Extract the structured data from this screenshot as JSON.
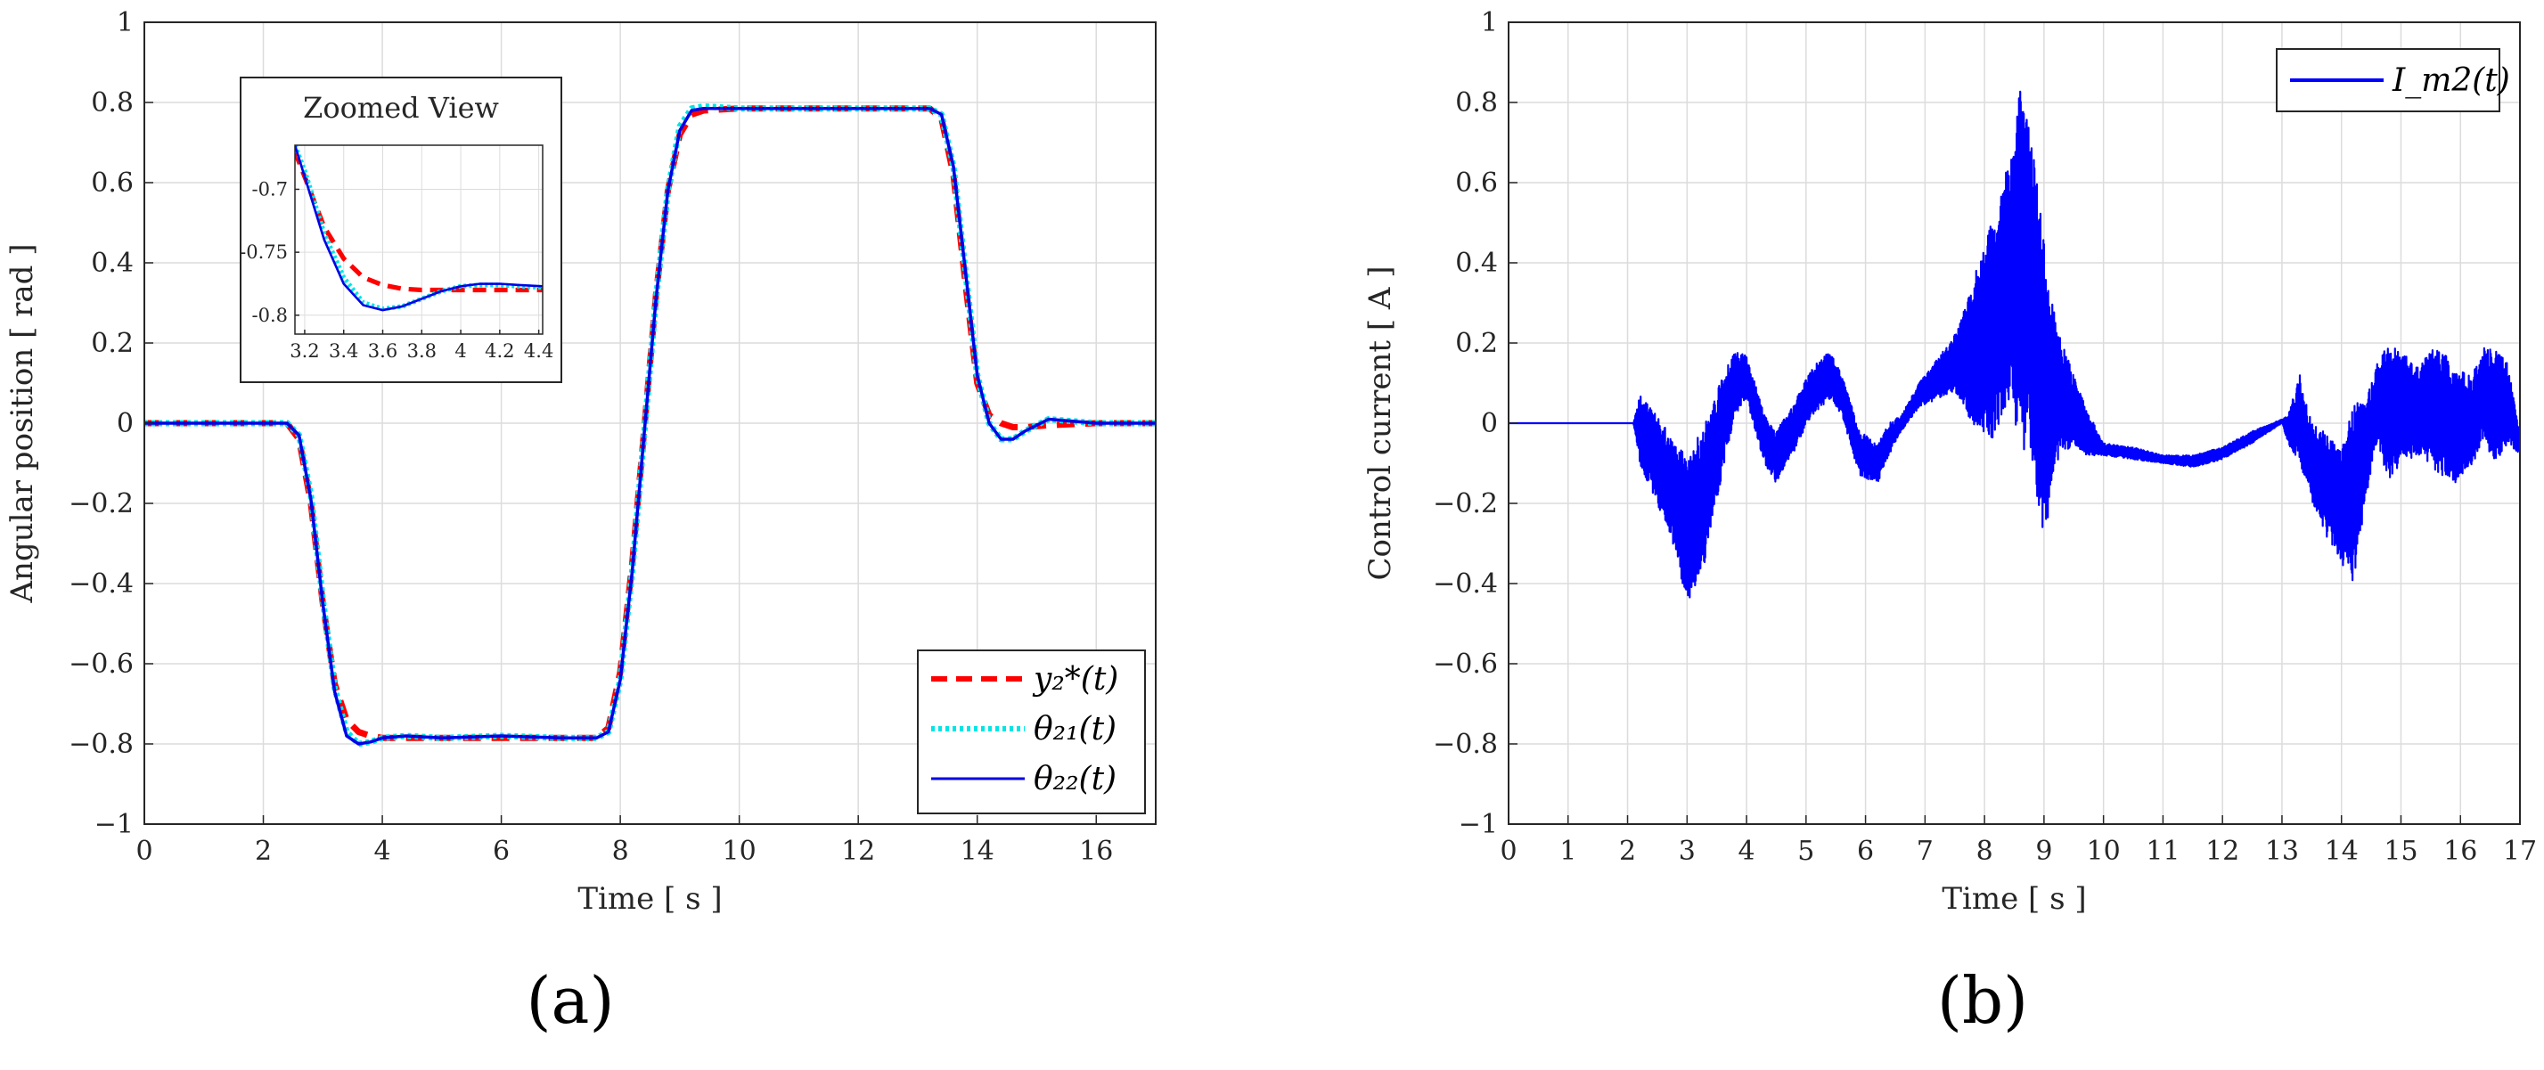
{
  "chart_data": [
    {
      "type": "line",
      "panel_label": "(a)",
      "xlabel": "Time [ s ]",
      "ylabel": "Angular position [ rad ]",
      "xlim": [
        0,
        17
      ],
      "ylim": [
        -1,
        1
      ],
      "xticks": [
        0,
        2,
        4,
        6,
        8,
        10,
        12,
        14,
        16
      ],
      "yticks": [
        -1,
        -0.8,
        -0.6,
        -0.4,
        -0.2,
        0,
        0.2,
        0.4,
        0.6,
        0.8,
        1
      ],
      "xtick_labels": [
        "0",
        "2",
        "4",
        "6",
        "8",
        "10",
        "12",
        "14",
        "16"
      ],
      "ytick_labels": [
        "−1",
        "−0.8",
        "−0.6",
        "−0.4",
        "−0.2",
        "0",
        "0.2",
        "0.4",
        "0.6",
        "0.8",
        "1"
      ],
      "grid": true,
      "legend_position": "bottom-right",
      "series": [
        {
          "name": "y₂*(t)",
          "color": "#ff0000",
          "style": "dashed",
          "x": [
            0,
            2.4,
            2.6,
            2.8,
            3.0,
            3.2,
            3.4,
            3.6,
            3.8,
            4.0,
            4.4,
            5,
            6,
            7,
            7.6,
            7.8,
            8.0,
            8.2,
            8.4,
            8.6,
            8.8,
            9.0,
            9.2,
            9.4,
            10,
            12,
            13.2,
            13.4,
            13.6,
            13.8,
            14.0,
            14.2,
            14.4,
            14.6,
            14.8,
            15.2,
            16,
            17
          ],
          "y": [
            0,
            0,
            -0.04,
            -0.2,
            -0.45,
            -0.65,
            -0.74,
            -0.77,
            -0.78,
            -0.785,
            -0.785,
            -0.785,
            -0.785,
            -0.785,
            -0.785,
            -0.76,
            -0.62,
            -0.35,
            -0.02,
            0.32,
            0.58,
            0.72,
            0.77,
            0.78,
            0.785,
            0.785,
            0.785,
            0.76,
            0.62,
            0.35,
            0.1,
            0.02,
            0.0,
            -0.01,
            -0.01,
            -0.005,
            0,
            0
          ]
        },
        {
          "name": "θ₂₁(t)",
          "color": "#00e5e5",
          "style": "dotted",
          "x": [
            0,
            2.4,
            2.6,
            2.8,
            3.0,
            3.2,
            3.4,
            3.6,
            3.8,
            4.0,
            4.4,
            5,
            6,
            7,
            7.6,
            7.8,
            8.0,
            8.2,
            8.4,
            8.6,
            8.8,
            9.0,
            9.2,
            9.4,
            10,
            12,
            13.2,
            13.4,
            13.6,
            13.8,
            14.0,
            14.2,
            14.4,
            14.6,
            14.8,
            15.2,
            16,
            17
          ],
          "y": [
            0,
            0,
            -0.03,
            -0.18,
            -0.44,
            -0.66,
            -0.77,
            -0.8,
            -0.795,
            -0.785,
            -0.78,
            -0.785,
            -0.78,
            -0.785,
            -0.785,
            -0.77,
            -0.64,
            -0.37,
            -0.03,
            0.31,
            0.58,
            0.74,
            0.785,
            0.79,
            0.785,
            0.785,
            0.785,
            0.77,
            0.64,
            0.38,
            0.12,
            0.0,
            -0.04,
            -0.04,
            -0.02,
            0.01,
            0,
            0
          ]
        },
        {
          "name": "θ₂₂(t)",
          "color": "#0000e6",
          "style": "solid",
          "x": [
            0,
            2.4,
            2.6,
            2.8,
            3.0,
            3.2,
            3.4,
            3.6,
            3.8,
            4.0,
            4.4,
            5,
            6,
            7,
            7.6,
            7.8,
            8.0,
            8.2,
            8.4,
            8.6,
            8.8,
            9.0,
            9.2,
            9.4,
            10,
            12,
            13.2,
            13.4,
            13.6,
            13.8,
            14.0,
            14.2,
            14.4,
            14.6,
            14.8,
            15.2,
            16,
            17
          ],
          "y": [
            0,
            0,
            -0.03,
            -0.19,
            -0.45,
            -0.67,
            -0.78,
            -0.8,
            -0.795,
            -0.785,
            -0.78,
            -0.785,
            -0.78,
            -0.785,
            -0.785,
            -0.77,
            -0.64,
            -0.37,
            -0.03,
            0.31,
            0.58,
            0.73,
            0.78,
            0.785,
            0.785,
            0.785,
            0.785,
            0.77,
            0.64,
            0.38,
            0.12,
            0.0,
            -0.04,
            -0.04,
            -0.02,
            0.01,
            0,
            0
          ]
        }
      ],
      "inset": {
        "title": "Zoomed View",
        "xlim": [
          3.15,
          4.42
        ],
        "ylim": [
          -0.815,
          -0.665
        ],
        "xticks": [
          3.2,
          3.4,
          3.6,
          3.8,
          4,
          4.2,
          4.4
        ],
        "yticks": [
          -0.8,
          -0.75,
          -0.7
        ],
        "xtick_labels": [
          "3.2",
          "3.4",
          "3.6",
          "3.8",
          "4",
          "4.2",
          "4.4"
        ],
        "ytick_labels": [
          "-0.8",
          "-0.75",
          "-0.7"
        ],
        "series": [
          {
            "name": "y₂*(t)",
            "color": "#ff0000",
            "style": "dashed",
            "x": [
              3.15,
              3.2,
              3.3,
              3.4,
              3.5,
              3.6,
              3.7,
              3.8,
              3.9,
              4.0,
              4.2,
              4.42
            ],
            "y": [
              -0.67,
              -0.69,
              -0.73,
              -0.755,
              -0.77,
              -0.776,
              -0.779,
              -0.78,
              -0.78,
              -0.78,
              -0.78,
              -0.78
            ]
          },
          {
            "name": "θ₂₁(t)",
            "color": "#00e5e5",
            "style": "dotted",
            "x": [
              3.15,
              3.2,
              3.3,
              3.4,
              3.5,
              3.6,
              3.7,
              3.8,
              3.9,
              4.0,
              4.1,
              4.2,
              4.3,
              4.42
            ],
            "y": [
              -0.665,
              -0.685,
              -0.735,
              -0.77,
              -0.79,
              -0.795,
              -0.793,
              -0.787,
              -0.781,
              -0.777,
              -0.776,
              -0.776,
              -0.777,
              -0.778
            ]
          },
          {
            "name": "θ₂₂(t)",
            "color": "#0000e6",
            "style": "solid",
            "x": [
              3.15,
              3.2,
              3.3,
              3.4,
              3.5,
              3.6,
              3.7,
              3.8,
              3.9,
              4.0,
              4.1,
              4.2,
              4.3,
              4.42
            ],
            "y": [
              -0.665,
              -0.69,
              -0.74,
              -0.775,
              -0.792,
              -0.796,
              -0.793,
              -0.787,
              -0.781,
              -0.777,
              -0.775,
              -0.775,
              -0.776,
              -0.777
            ]
          }
        ]
      }
    },
    {
      "type": "line",
      "panel_label": "(b)",
      "xlabel": "Time [ s ]",
      "ylabel": "Control current [ A ]",
      "xlim": [
        0,
        17
      ],
      "ylim": [
        -1,
        1
      ],
      "xticks": [
        0,
        1,
        2,
        3,
        4,
        5,
        6,
        7,
        8,
        9,
        10,
        11,
        12,
        13,
        14,
        15,
        16,
        17
      ],
      "yticks": [
        -1,
        -0.8,
        -0.6,
        -0.4,
        -0.2,
        0,
        0.2,
        0.4,
        0.6,
        0.8,
        1
      ],
      "xtick_labels": [
        "0",
        "1",
        "2",
        "3",
        "4",
        "5",
        "6",
        "7",
        "8",
        "9",
        "10",
        "11",
        "12",
        "13",
        "14",
        "15",
        "16",
        "17"
      ],
      "ytick_labels": [
        "−1",
        "−0.8",
        "−0.6",
        "−0.4",
        "−0.2",
        "0",
        "0.2",
        "0.4",
        "0.6",
        "0.8",
        "1"
      ],
      "grid": true,
      "legend_position": "top-right",
      "series": [
        {
          "name": "I_m2(t)",
          "color": "#0000ff",
          "style": "solid",
          "envelope_x": [
            0,
            2.1,
            2.2,
            2.5,
            2.8,
            3.0,
            3.3,
            3.6,
            3.8,
            4.0,
            4.3,
            4.5,
            4.8,
            5.1,
            5.4,
            5.6,
            5.9,
            6.2,
            6.4,
            6.6,
            6.9,
            7.2,
            7.5,
            7.8,
            8.1,
            8.4,
            8.6,
            8.8,
            9.0,
            9.2,
            9.5,
            9.7,
            10.0,
            10.5,
            11.0,
            11.5,
            12.0,
            12.5,
            13.0,
            13.1,
            13.3,
            13.5,
            13.8,
            14.0,
            14.2,
            14.4,
            14.6,
            14.8,
            15.0,
            15.3,
            15.6,
            15.9,
            16.2,
            16.4,
            16.6,
            16.8,
            17.0
          ],
          "envelope_upper": [
            0,
            0.0,
            0.07,
            0.02,
            -0.05,
            -0.08,
            0.0,
            0.12,
            0.18,
            0.17,
            0.02,
            -0.02,
            0.05,
            0.14,
            0.18,
            0.12,
            -0.02,
            -0.05,
            0.0,
            0.02,
            0.1,
            0.16,
            0.22,
            0.35,
            0.5,
            0.65,
            0.83,
            0.7,
            0.45,
            0.25,
            0.12,
            0.04,
            -0.05,
            -0.06,
            -0.08,
            -0.08,
            -0.06,
            -0.02,
            0.01,
            0.02,
            0.12,
            0.0,
            -0.03,
            -0.07,
            0.05,
            0.05,
            0.15,
            0.2,
            0.18,
            0.14,
            0.2,
            0.14,
            0.12,
            0.2,
            0.18,
            0.15,
            -0.03
          ],
          "envelope_lower": [
            0,
            0.0,
            -0.1,
            -0.2,
            -0.32,
            -0.45,
            -0.35,
            -0.12,
            0.02,
            0.06,
            -0.1,
            -0.15,
            -0.07,
            0.02,
            0.06,
            0.02,
            -0.13,
            -0.15,
            -0.08,
            -0.02,
            0.04,
            0.06,
            0.08,
            0.0,
            -0.05,
            0.05,
            -0.05,
            -0.1,
            -0.3,
            -0.1,
            -0.05,
            -0.08,
            -0.08,
            -0.09,
            -0.1,
            -0.11,
            -0.09,
            -0.05,
            0.0,
            -0.05,
            -0.1,
            -0.2,
            -0.3,
            -0.35,
            -0.4,
            -0.2,
            -0.05,
            -0.15,
            -0.1,
            -0.08,
            -0.12,
            -0.15,
            -0.1,
            -0.05,
            -0.1,
            -0.05,
            -0.08
          ]
        }
      ]
    }
  ]
}
